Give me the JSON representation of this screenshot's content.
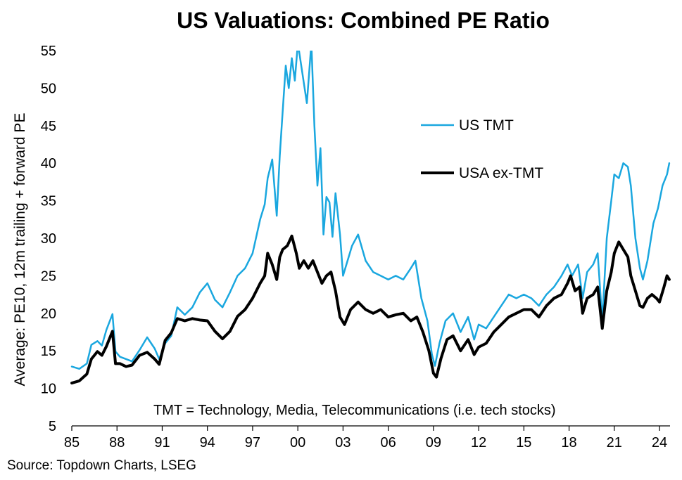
{
  "chart_data": {
    "type": "line",
    "title": "US Valuations: Combined PE Ratio",
    "ylabel": "Average: PE10, 12m trailing + forward PE",
    "ylim": [
      5,
      55
    ],
    "yticks": [
      5,
      10,
      15,
      20,
      25,
      30,
      35,
      40,
      45,
      50,
      55
    ],
    "xlim": [
      1985,
      2024.7
    ],
    "xticks": [
      {
        "value": 1985,
        "label": "85"
      },
      {
        "value": 1988,
        "label": "88"
      },
      {
        "value": 1991,
        "label": "91"
      },
      {
        "value": 1994,
        "label": "94"
      },
      {
        "value": 1997,
        "label": "97"
      },
      {
        "value": 2000,
        "label": "00"
      },
      {
        "value": 2003,
        "label": "03"
      },
      {
        "value": 2006,
        "label": "06"
      },
      {
        "value": 2009,
        "label": "09"
      },
      {
        "value": 2012,
        "label": "12"
      },
      {
        "value": 2015,
        "label": "15"
      },
      {
        "value": 2018,
        "label": "18"
      },
      {
        "value": 2021,
        "label": "21"
      },
      {
        "value": 2024,
        "label": "24"
      }
    ],
    "grid": false,
    "legend_position": "upper-right",
    "annotation": "TMT = Technology, Media, Telecommunications  (i.e. tech stocks)",
    "source": "Source: Topdown Charts, LSEG",
    "series": [
      {
        "name": "US TMT",
        "color": "#1aa7df",
        "width": 2.5,
        "points": [
          [
            1985.0,
            12.9
          ],
          [
            1985.5,
            12.6
          ],
          [
            1986.0,
            13.3
          ],
          [
            1986.3,
            15.8
          ],
          [
            1986.7,
            16.3
          ],
          [
            1987.0,
            15.7
          ],
          [
            1987.3,
            17.8
          ],
          [
            1987.7,
            19.9
          ],
          [
            1987.9,
            14.9
          ],
          [
            1988.2,
            14.2
          ],
          [
            1988.6,
            13.9
          ],
          [
            1989.0,
            13.6
          ],
          [
            1989.5,
            15.1
          ],
          [
            1990.0,
            16.8
          ],
          [
            1990.5,
            15.3
          ],
          [
            1990.8,
            13.9
          ],
          [
            1991.2,
            16.0
          ],
          [
            1991.6,
            17.0
          ],
          [
            1992.0,
            20.8
          ],
          [
            1992.5,
            19.8
          ],
          [
            1993.0,
            20.8
          ],
          [
            1993.5,
            22.8
          ],
          [
            1994.0,
            24.0
          ],
          [
            1994.5,
            21.8
          ],
          [
            1995.0,
            20.8
          ],
          [
            1995.5,
            22.8
          ],
          [
            1996.0,
            25.0
          ],
          [
            1996.5,
            26.0
          ],
          [
            1997.0,
            28.0
          ],
          [
            1997.5,
            32.5
          ],
          [
            1997.8,
            34.5
          ],
          [
            1998.0,
            38.0
          ],
          [
            1998.3,
            40.5
          ],
          [
            1998.6,
            33.0
          ],
          [
            1998.8,
            41.0
          ],
          [
            1999.0,
            47.0
          ],
          [
            1999.2,
            53.0
          ],
          [
            1999.4,
            50.0
          ],
          [
            1999.6,
            54.0
          ],
          [
            1999.8,
            51.0
          ],
          [
            2000.0,
            56.0
          ],
          [
            2000.3,
            52.0
          ],
          [
            2000.6,
            48.0
          ],
          [
            2000.9,
            56.0
          ],
          [
            2001.1,
            45.0
          ],
          [
            2001.3,
            37.0
          ],
          [
            2001.5,
            42.0
          ],
          [
            2001.7,
            30.5
          ],
          [
            2001.9,
            35.5
          ],
          [
            2002.1,
            34.8
          ],
          [
            2002.3,
            30.2
          ],
          [
            2002.5,
            36.0
          ],
          [
            2002.8,
            30.5
          ],
          [
            2003.0,
            25.0
          ],
          [
            2003.3,
            27.0
          ],
          [
            2003.6,
            29.0
          ],
          [
            2004.0,
            30.5
          ],
          [
            2004.5,
            27.0
          ],
          [
            2005.0,
            25.5
          ],
          [
            2005.5,
            25.0
          ],
          [
            2006.0,
            24.5
          ],
          [
            2006.5,
            25.0
          ],
          [
            2007.0,
            24.5
          ],
          [
            2007.5,
            26.0
          ],
          [
            2007.8,
            27.0
          ],
          [
            2008.2,
            22.0
          ],
          [
            2008.6,
            19.0
          ],
          [
            2008.9,
            14.5
          ],
          [
            2009.1,
            13.0
          ],
          [
            2009.4,
            16.0
          ],
          [
            2009.8,
            19.0
          ],
          [
            2010.3,
            20.0
          ],
          [
            2010.8,
            17.5
          ],
          [
            2011.3,
            19.5
          ],
          [
            2011.7,
            16.5
          ],
          [
            2012.0,
            18.5
          ],
          [
            2012.5,
            18.0
          ],
          [
            2013.0,
            19.5
          ],
          [
            2013.5,
            21.0
          ],
          [
            2014.0,
            22.5
          ],
          [
            2014.5,
            22.0
          ],
          [
            2015.0,
            22.5
          ],
          [
            2015.5,
            22.0
          ],
          [
            2016.0,
            21.0
          ],
          [
            2016.5,
            22.5
          ],
          [
            2017.0,
            23.5
          ],
          [
            2017.5,
            25.0
          ],
          [
            2017.9,
            26.5
          ],
          [
            2018.2,
            25.0
          ],
          [
            2018.6,
            26.5
          ],
          [
            2018.9,
            22.0
          ],
          [
            2019.2,
            25.5
          ],
          [
            2019.6,
            26.5
          ],
          [
            2019.9,
            28.0
          ],
          [
            2020.2,
            19.0
          ],
          [
            2020.5,
            30.0
          ],
          [
            2020.8,
            35.0
          ],
          [
            2021.0,
            38.5
          ],
          [
            2021.3,
            38.0
          ],
          [
            2021.6,
            40.0
          ],
          [
            2021.9,
            39.5
          ],
          [
            2022.1,
            37.0
          ],
          [
            2022.4,
            30.0
          ],
          [
            2022.7,
            26.0
          ],
          [
            2022.9,
            24.5
          ],
          [
            2023.2,
            27.0
          ],
          [
            2023.6,
            32.0
          ],
          [
            2023.9,
            34.0
          ],
          [
            2024.2,
            37.0
          ],
          [
            2024.5,
            38.5
          ],
          [
            2024.65,
            40.0
          ]
        ]
      },
      {
        "name": "USA ex-TMT",
        "color": "#000000",
        "width": 4,
        "points": [
          [
            1985.0,
            10.7
          ],
          [
            1985.5,
            11.0
          ],
          [
            1986.0,
            11.9
          ],
          [
            1986.3,
            13.9
          ],
          [
            1986.7,
            14.9
          ],
          [
            1987.0,
            14.4
          ],
          [
            1987.3,
            15.6
          ],
          [
            1987.7,
            17.6
          ],
          [
            1987.9,
            13.3
          ],
          [
            1988.2,
            13.3
          ],
          [
            1988.6,
            12.9
          ],
          [
            1989.0,
            13.1
          ],
          [
            1989.5,
            14.4
          ],
          [
            1990.0,
            14.8
          ],
          [
            1990.5,
            13.9
          ],
          [
            1990.8,
            13.2
          ],
          [
            1991.2,
            16.4
          ],
          [
            1991.6,
            17.4
          ],
          [
            1992.0,
            19.3
          ],
          [
            1992.5,
            19.0
          ],
          [
            1993.0,
            19.3
          ],
          [
            1993.5,
            19.1
          ],
          [
            1994.0,
            19.0
          ],
          [
            1994.5,
            17.6
          ],
          [
            1995.0,
            16.6
          ],
          [
            1995.5,
            17.6
          ],
          [
            1996.0,
            19.6
          ],
          [
            1996.5,
            20.5
          ],
          [
            1997.0,
            22.0
          ],
          [
            1997.5,
            24.0
          ],
          [
            1997.8,
            25.0
          ],
          [
            1998.0,
            28.0
          ],
          [
            1998.3,
            26.5
          ],
          [
            1998.6,
            24.5
          ],
          [
            1998.8,
            27.5
          ],
          [
            1999.0,
            28.5
          ],
          [
            1999.3,
            29.0
          ],
          [
            1999.6,
            30.3
          ],
          [
            1999.9,
            28.0
          ],
          [
            2000.1,
            26.0
          ],
          [
            2000.4,
            27.0
          ],
          [
            2000.7,
            26.0
          ],
          [
            2001.0,
            27.0
          ],
          [
            2001.3,
            25.5
          ],
          [
            2001.6,
            24.0
          ],
          [
            2001.9,
            25.0
          ],
          [
            2002.2,
            25.5
          ],
          [
            2002.5,
            23.0
          ],
          [
            2002.8,
            19.5
          ],
          [
            2003.1,
            18.5
          ],
          [
            2003.5,
            20.5
          ],
          [
            2004.0,
            21.5
          ],
          [
            2004.5,
            20.5
          ],
          [
            2005.0,
            20.0
          ],
          [
            2005.5,
            20.5
          ],
          [
            2006.0,
            19.5
          ],
          [
            2006.5,
            19.8
          ],
          [
            2007.0,
            20.0
          ],
          [
            2007.5,
            19.0
          ],
          [
            2007.9,
            19.5
          ],
          [
            2008.3,
            17.5
          ],
          [
            2008.7,
            15.0
          ],
          [
            2009.0,
            12.0
          ],
          [
            2009.2,
            11.5
          ],
          [
            2009.5,
            14.0
          ],
          [
            2009.9,
            16.5
          ],
          [
            2010.3,
            17.0
          ],
          [
            2010.8,
            15.0
          ],
          [
            2011.3,
            16.5
          ],
          [
            2011.7,
            14.5
          ],
          [
            2012.0,
            15.5
          ],
          [
            2012.5,
            16.0
          ],
          [
            2013.0,
            17.5
          ],
          [
            2013.5,
            18.5
          ],
          [
            2014.0,
            19.5
          ],
          [
            2014.5,
            20.0
          ],
          [
            2015.0,
            20.5
          ],
          [
            2015.5,
            20.5
          ],
          [
            2016.0,
            19.5
          ],
          [
            2016.5,
            21.0
          ],
          [
            2017.0,
            22.0
          ],
          [
            2017.5,
            22.5
          ],
          [
            2017.9,
            24.0
          ],
          [
            2018.1,
            25.0
          ],
          [
            2018.4,
            23.0
          ],
          [
            2018.7,
            23.5
          ],
          [
            2018.9,
            20.0
          ],
          [
            2019.2,
            22.0
          ],
          [
            2019.6,
            22.5
          ],
          [
            2019.9,
            23.5
          ],
          [
            2020.2,
            18.0
          ],
          [
            2020.5,
            23.0
          ],
          [
            2020.8,
            25.5
          ],
          [
            2021.0,
            28.0
          ],
          [
            2021.3,
            29.5
          ],
          [
            2021.6,
            28.5
          ],
          [
            2021.9,
            27.5
          ],
          [
            2022.1,
            25.0
          ],
          [
            2022.4,
            23.0
          ],
          [
            2022.7,
            21.0
          ],
          [
            2022.9,
            20.8
          ],
          [
            2023.2,
            22.0
          ],
          [
            2023.5,
            22.5
          ],
          [
            2023.8,
            22.0
          ],
          [
            2024.0,
            21.5
          ],
          [
            2024.3,
            23.5
          ],
          [
            2024.5,
            25.0
          ],
          [
            2024.65,
            24.5
          ]
        ]
      }
    ]
  }
}
